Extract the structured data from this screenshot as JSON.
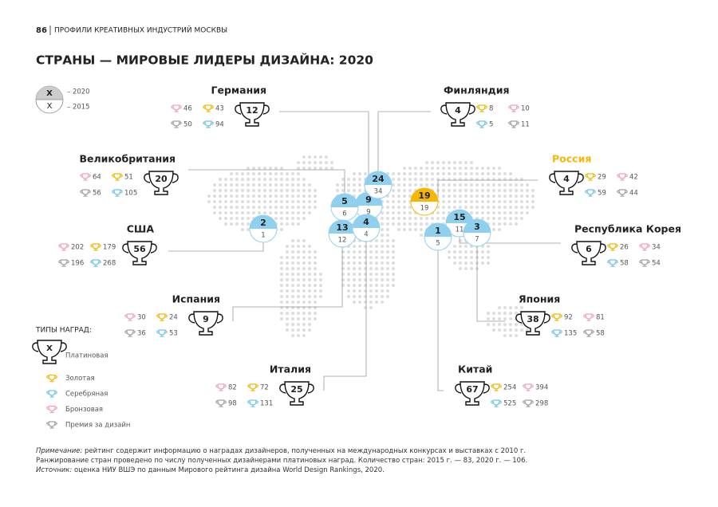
{
  "header": {
    "page": "86",
    "text": "ПРОФИЛИ КРЕАТИВНЫХ ИНДУСТРИЙ МОСКВЫ"
  },
  "title": "СТРАНЫ — МИРОВЫЕ ЛИДЕРЫ ДИЗАЙНА: 2020",
  "legend": {
    "symbol_top": "X",
    "symbol_bottom": "X",
    "label_top": "– 2020",
    "label_bottom": "– 2015"
  },
  "countries": [
    {
      "name": "Германия",
      "platinum": 12,
      "gold": 43,
      "silver": 94,
      "bronze": 46,
      "design": 50,
      "rank_2020": 9,
      "rank_2015": 9
    },
    {
      "name": "Финляндия",
      "platinum": 4,
      "gold": 8,
      "silver": 5,
      "bronze": 10,
      "design": 11,
      "rank_2020": 24,
      "rank_2015": 34
    },
    {
      "name": "Великобритания",
      "platinum": 20,
      "gold": 51,
      "silver": 105,
      "bronze": 64,
      "design": 56,
      "rank_2020": 5,
      "rank_2015": 6
    },
    {
      "name": "Россия",
      "platinum": 4,
      "gold": 29,
      "silver": 59,
      "bronze": 42,
      "design": 44,
      "rank_2020": 19,
      "rank_2015": 19
    },
    {
      "name": "США",
      "platinum": 56,
      "gold": 179,
      "silver": 268,
      "bronze": 202,
      "design": 196,
      "rank_2020": 2,
      "rank_2015": 1
    },
    {
      "name": "Республика Корея",
      "platinum": 6,
      "gold": 26,
      "silver": 58,
      "bronze": 34,
      "design": 54,
      "rank_2020": 15,
      "rank_2015": 11
    },
    {
      "name": "Испания",
      "platinum": 9,
      "gold": 24,
      "silver": 53,
      "bronze": 30,
      "design": 36,
      "rank_2020": 13,
      "rank_2015": 12
    },
    {
      "name": "Япония",
      "platinum": 38,
      "gold": 92,
      "silver": 135,
      "bronze": 81,
      "design": 58,
      "rank_2020": 3,
      "rank_2015": 7
    },
    {
      "name": "Италия",
      "platinum": 25,
      "gold": 72,
      "silver": 131,
      "bronze": 82,
      "design": 98,
      "rank_2020": 4,
      "rank_2015": 4
    },
    {
      "name": "Китай",
      "platinum": 67,
      "gold": 254,
      "silver": 525,
      "bronze": 394,
      "design": 298,
      "rank_2020": 1,
      "rank_2015": 5
    }
  ],
  "award_types": {
    "title": "ТИПЫ НАГРАД:",
    "symbol": "X",
    "items": [
      "Платиновая",
      "Золотая",
      "Серебряная",
      "Бронзовая",
      "Премия за дизайн"
    ]
  },
  "notes": [
    {
      "label": "Примечание:",
      "text": " рейтинг содержит информацию о наградах дизайнеров, полученных на международных конкурсах и выставках с 2010 г."
    },
    {
      "text": "Ранжирование стран проведено по числу полученных дизайнерами платиновых наград. Количество стран: 2015 г. — 83, 2020 г. — 106."
    },
    {
      "label": "Источник:",
      "text": " оценка НИУ ВШЭ по данным Мирового рейтинга дизайна World Design Rankings, 2020."
    }
  ]
}
